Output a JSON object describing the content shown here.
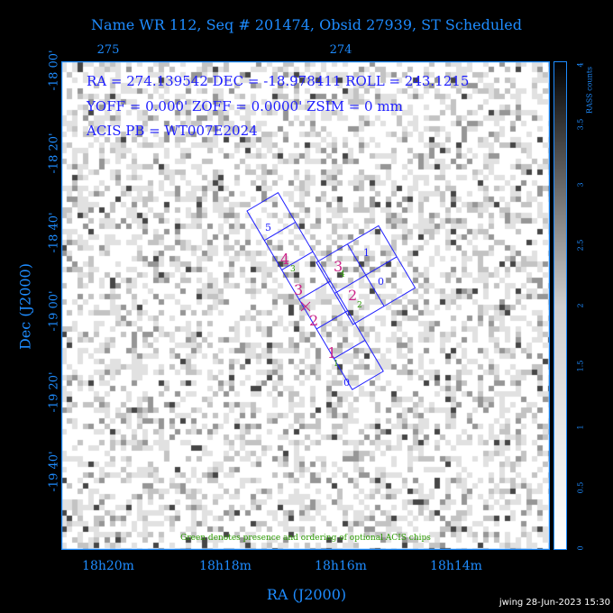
{
  "header": {
    "title": "Name WR 112, Seq # 201474, Obsid 27939, ST Scheduled"
  },
  "info": {
    "line1": "RA = 274.139542    DEC = -18.978411   ROLL = 243.1215",
    "line2": "YOFF =    0.000'        ZOFF =  0.0000'       ZSIM = 0 mm",
    "line3": "ACIS PB = WT007E2024"
  },
  "axes": {
    "ylabel": "Dec (J2000)",
    "xlabel": "RA (J2000)",
    "yticks": [
      "-18 00'",
      "-18 20'",
      "-18 40'",
      "-19 00'",
      "-19 20'",
      "-19 40'"
    ],
    "xticks": [
      "18h20m",
      "18h18m",
      "18h16m",
      "18h14m"
    ],
    "top_ticks": [
      "275",
      "274"
    ]
  },
  "colorbar": {
    "title": "RASS counts",
    "ticks": [
      "0",
      "0.5",
      "1",
      "1.5",
      "2",
      "2.5",
      "3",
      "3.5",
      "4"
    ]
  },
  "chips": {
    "main": [
      {
        "id": "5",
        "color": "#1e1eff"
      },
      {
        "id": "4",
        "color": "#cc2288"
      },
      {
        "id": "3",
        "color": "#cc2288"
      },
      {
        "id": "2",
        "color": "#cc2288"
      },
      {
        "id": "1",
        "color": "#cc2288"
      },
      {
        "id": "0",
        "color": "#1e1eff"
      }
    ],
    "square": [
      {
        "id": "3",
        "color": "#cc2288"
      },
      {
        "id": "1",
        "color": "#1e1eff"
      },
      {
        "id": "2",
        "color": "#cc2288"
      },
      {
        "id": "0",
        "color": "#1e1eff"
      }
    ],
    "optional_order": [
      "3",
      "2",
      "4",
      "1"
    ]
  },
  "note": "Green denotes presence and ordering of optional ACIS chips",
  "footer": "jwing 28-Jun-2023 15:30"
}
